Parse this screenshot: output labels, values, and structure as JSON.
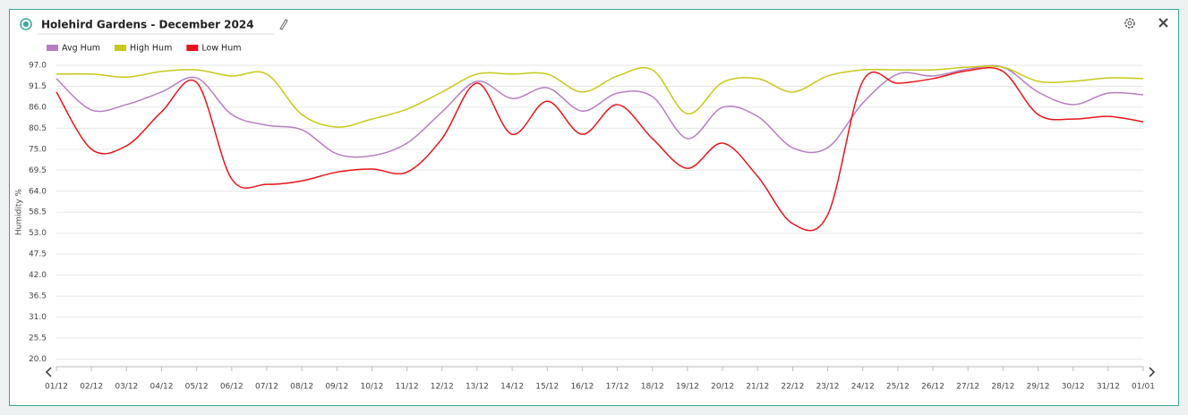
{
  "chart_data": {
    "type": "line",
    "title": "Holehird Gardens - December 2024",
    "y_label": "Humidity %",
    "categories": [
      "01/12",
      "02/12",
      "03/12",
      "04/12",
      "05/12",
      "06/12",
      "07/12",
      "08/12",
      "09/12",
      "10/12",
      "11/12",
      "12/12",
      "13/12",
      "14/12",
      "15/12",
      "16/12",
      "17/12",
      "18/12",
      "19/12",
      "20/12",
      "21/12",
      "22/12",
      "23/12",
      "24/12",
      "25/12",
      "26/12",
      "27/12",
      "28/12",
      "29/12",
      "30/12",
      "31/12",
      "01/01"
    ],
    "series": [
      {
        "name": "Avg Hum",
        "color": "#b57fc0",
        "values": [
          93.5,
          85.3,
          86.7,
          90,
          93.7,
          84.1,
          81.3,
          80.1,
          73.8,
          73.3,
          76.6,
          84.8,
          92.8,
          88.3,
          91.1,
          85,
          89.7,
          88.8,
          77.8,
          86,
          83.6,
          75.4,
          75.4,
          87.1,
          94.7,
          94.2,
          96,
          96.5,
          90,
          86.7,
          89.7,
          89.3
        ]
      },
      {
        "name": "High Hum",
        "color": "#c8c81a",
        "values": [
          94.7,
          94.7,
          93.9,
          95.4,
          95.8,
          94.2,
          94.7,
          84.1,
          80.8,
          82.9,
          85.5,
          90,
          94.7,
          94.7,
          94.7,
          90,
          94.2,
          95.8,
          84.3,
          92.5,
          93.5,
          90,
          94.2,
          95.8,
          95.8,
          95.8,
          96.5,
          96.5,
          92.8,
          92.8,
          93.7,
          93.5
        ]
      },
      {
        "name": "Low Hum",
        "color": "#e8141a",
        "values": [
          90,
          75,
          75.9,
          84.8,
          92.5,
          67.2,
          65.8,
          66.7,
          69,
          69.8,
          69,
          77.8,
          92.3,
          78.9,
          87.6,
          78.9,
          86.7,
          77.8,
          70,
          76.6,
          67.9,
          55.5,
          57.8,
          92.8,
          92.3,
          93.5,
          95.6,
          95.4,
          84.1,
          82.9,
          83.6,
          82.2
        ]
      }
    ],
    "ylim": [
      18,
      97
    ],
    "yticks": [
      {
        "value": 97,
        "label": "97.0"
      },
      91.5,
      {
        "value": 86,
        "label": "86.0"
      },
      80.5,
      {
        "value": 75,
        "label": "75.0"
      },
      69.5,
      {
        "value": 64,
        "label": "64.0"
      },
      58.5,
      {
        "value": 53,
        "label": "53.0"
      },
      47.5,
      {
        "value": 42,
        "label": "42.0"
      },
      36.5,
      {
        "value": 31,
        "label": "31.0"
      },
      25.5,
      {
        "value": 20,
        "label": "20.0"
      }
    ],
    "grid": true
  }
}
